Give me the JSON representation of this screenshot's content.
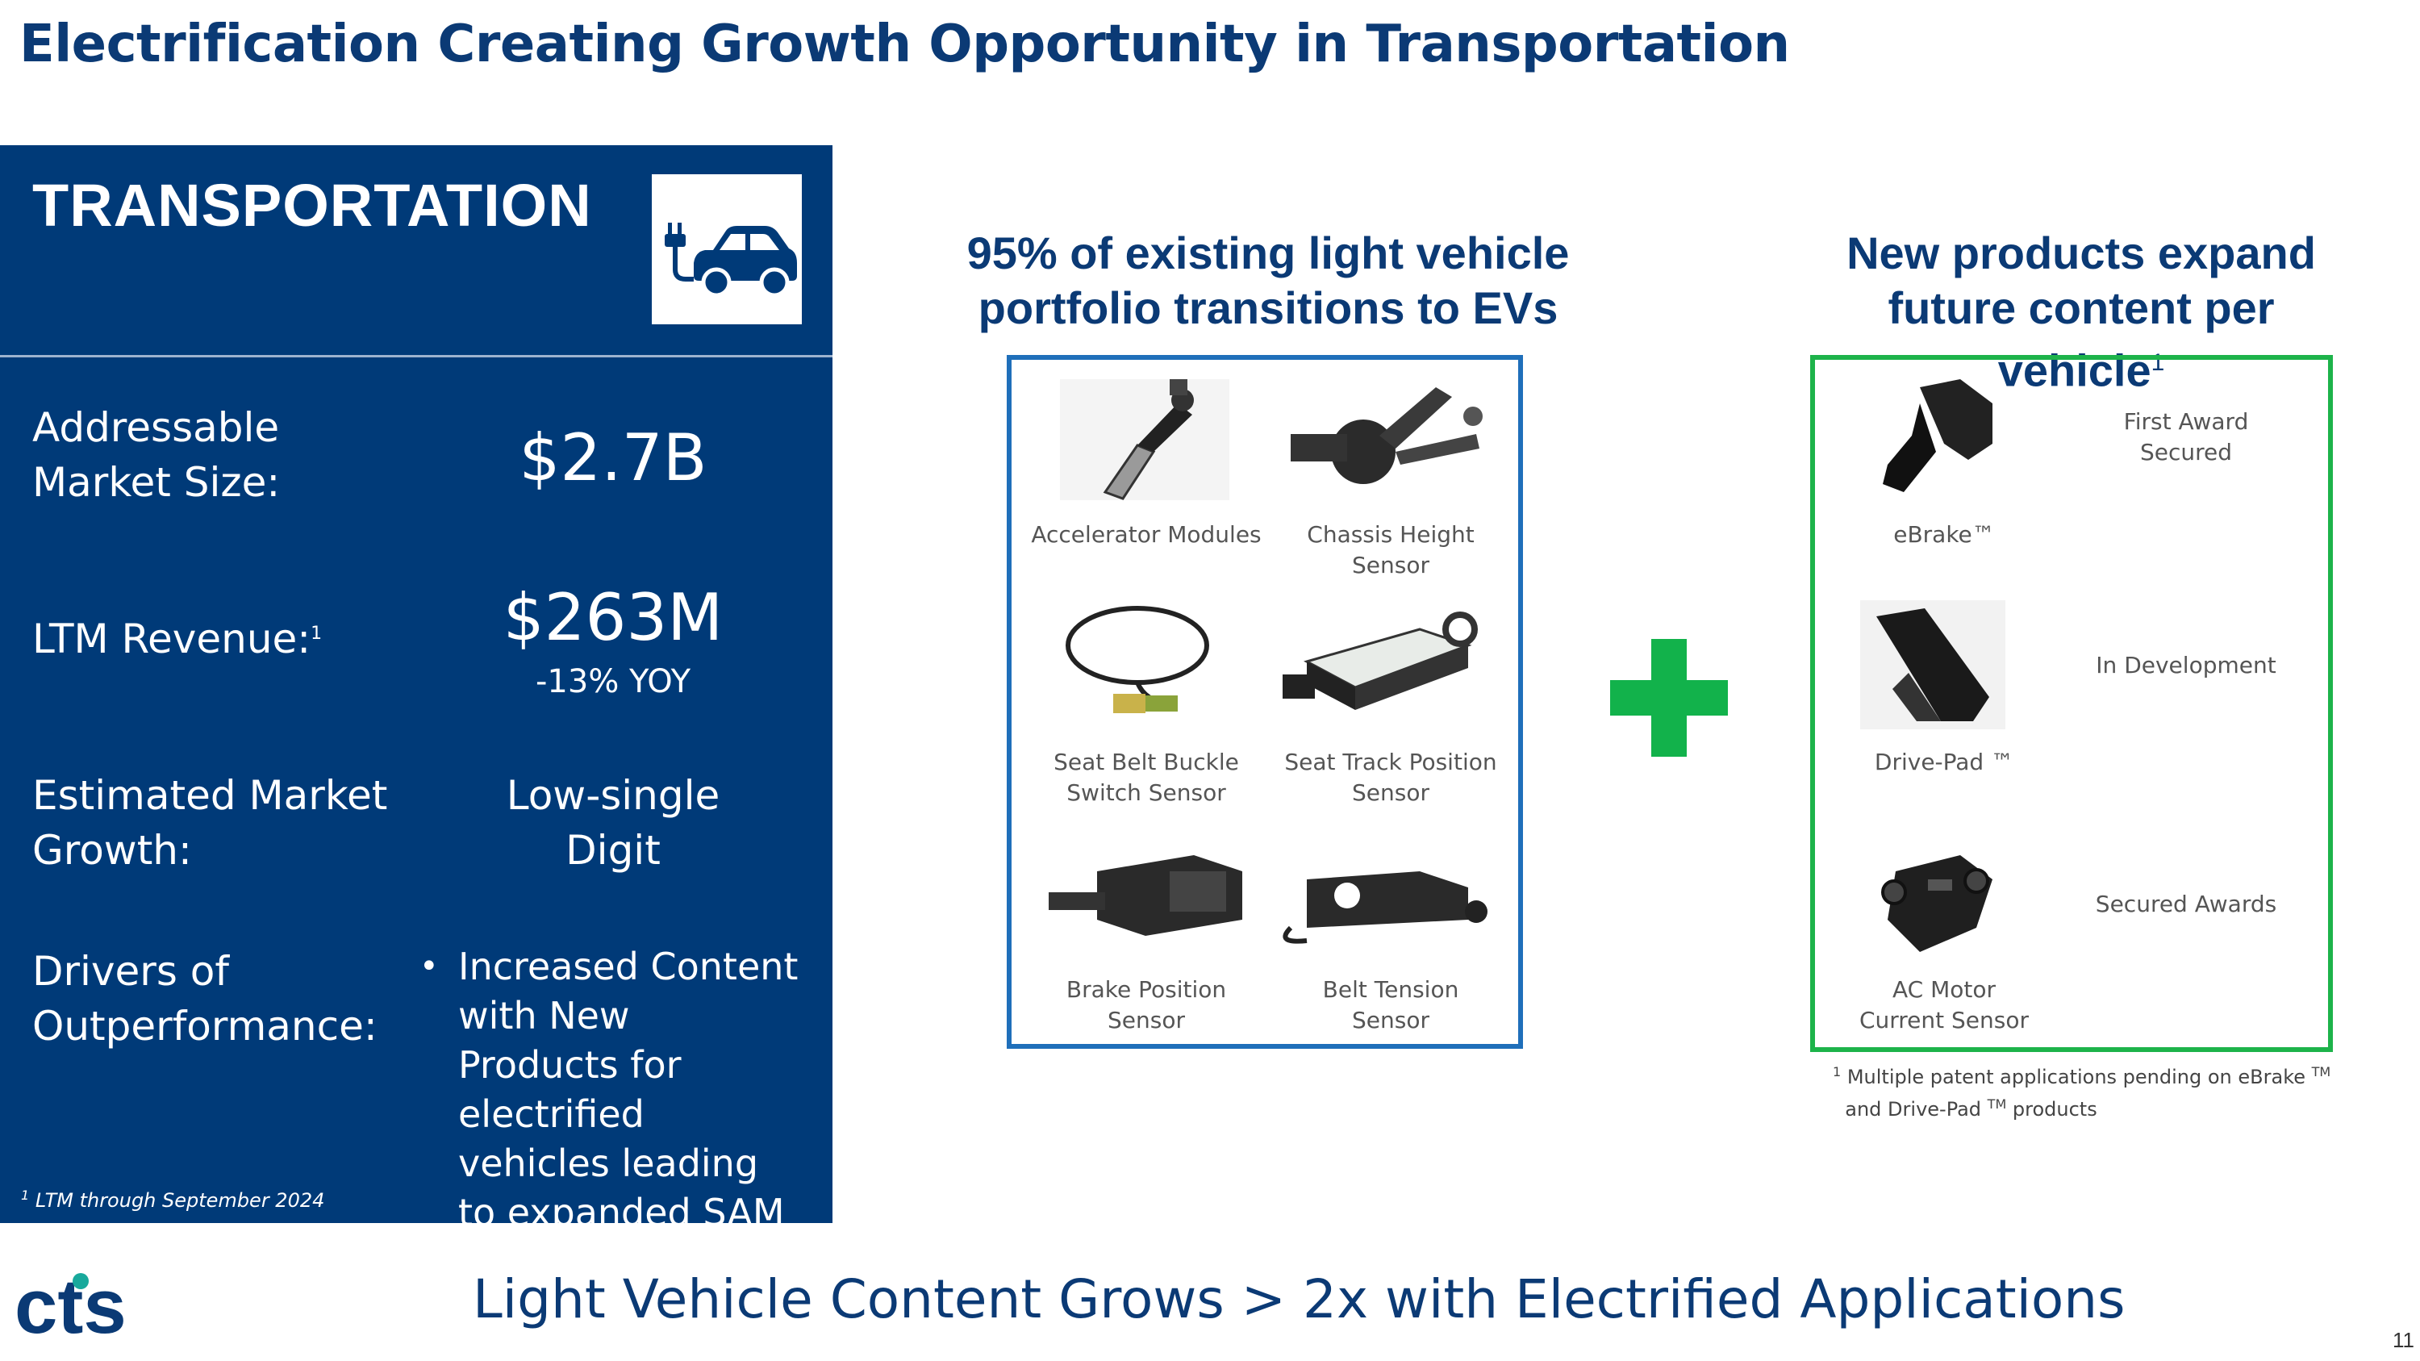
{
  "title": "Electrification Creating Growth Opportunity in Transportation",
  "panel": {
    "heading": "TRANSPORTATION",
    "rows": [
      {
        "label": "Addressable\nMarket Size:",
        "value": "$2.7B"
      },
      {
        "label": "LTM Revenue:",
        "value": "$263M",
        "sub": "-13% YOY",
        "footnote_marker": "1"
      },
      {
        "label": "Estimated Market\nGrowth:",
        "value": "Low-single\nDigit"
      },
      {
        "label": "Drivers of\nOutperformance:",
        "bullet": "Increased Content with New Products for electrified vehicles leading to expanded SAM"
      }
    ],
    "footnote": "LTM through September 2024",
    "footnote_marker": "1"
  },
  "middle": {
    "headline": "95% of existing light vehicle portfolio transitions to EVs",
    "products": [
      {
        "label": "Accelerator Modules",
        "icon": "accelerator-pedal-icon"
      },
      {
        "label": "Chassis Height Sensor",
        "icon": "chassis-sensor-icon"
      },
      {
        "label": "Seat Belt Buckle\nSwitch Sensor",
        "icon": "seat-belt-sensor-icon"
      },
      {
        "label": "Seat Track Position\nSensor",
        "icon": "seat-track-sensor-icon"
      },
      {
        "label": "Brake Position\nSensor",
        "icon": "brake-sensor-icon"
      },
      {
        "label": "Belt Tension\nSensor",
        "icon": "belt-tension-sensor-icon"
      }
    ]
  },
  "right": {
    "headline_text": "New products expand future content per vehicle",
    "headline_marker": "1",
    "products": [
      {
        "label": "eBrake™",
        "status": "First Award\nSecured",
        "icon": "ebrake-icon"
      },
      {
        "label": "Drive-Pad ™",
        "status": "In Development",
        "icon": "drive-pad-icon"
      },
      {
        "label": "AC Motor\nCurrent Sensor",
        "status": "Secured Awards",
        "icon": "current-sensor-icon"
      }
    ],
    "footnote": {
      "marker": "1",
      "part1": "Multiple patent applications pending on eBrake",
      "tm1": "TM",
      "part2": "and Drive-Pad",
      "tm2": "TM",
      "part3": "products"
    }
  },
  "bottom_line": "Light Vehicle Content Grows > 2x with Electrified Applications",
  "logo_text": "cts",
  "page_number": "11",
  "colors": {
    "navy": "#003a78",
    "blue_box": "#1f6fba",
    "green": "#1db34a",
    "logo_teal": "#18a99c"
  }
}
